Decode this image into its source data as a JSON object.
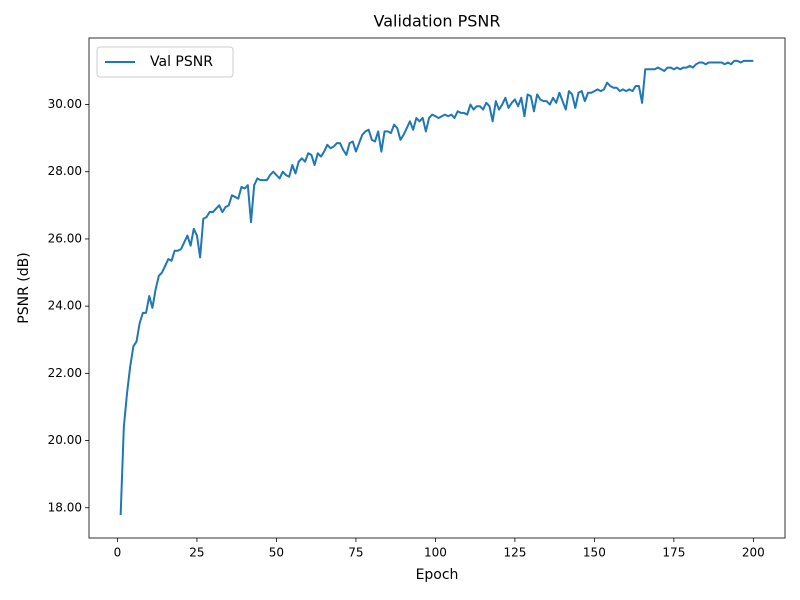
{
  "chart_data": {
    "type": "line",
    "title": "Validation PSNR",
    "x_label": "Epoch",
    "y_label": "PSNR (dB)",
    "x": [
      1,
      2,
      3,
      4,
      5,
      6,
      7,
      8,
      9,
      10,
      11,
      12,
      13,
      14,
      15,
      16,
      17,
      18,
      19,
      20,
      21,
      22,
      23,
      24,
      25,
      26,
      27,
      28,
      29,
      30,
      31,
      32,
      33,
      34,
      35,
      36,
      37,
      38,
      39,
      40,
      41,
      42,
      43,
      44,
      45,
      46,
      47,
      48,
      49,
      50,
      51,
      52,
      53,
      54,
      55,
      56,
      57,
      58,
      59,
      60,
      61,
      62,
      63,
      64,
      65,
      66,
      67,
      68,
      69,
      70,
      71,
      72,
      73,
      74,
      75,
      76,
      77,
      78,
      79,
      80,
      81,
      82,
      83,
      84,
      85,
      86,
      87,
      88,
      89,
      90,
      91,
      92,
      93,
      94,
      95,
      96,
      97,
      98,
      99,
      100,
      101,
      102,
      103,
      104,
      105,
      106,
      107,
      108,
      109,
      110,
      111,
      112,
      113,
      114,
      115,
      116,
      117,
      118,
      119,
      120,
      121,
      122,
      123,
      124,
      125,
      126,
      127,
      128,
      129,
      130,
      131,
      132,
      133,
      134,
      135,
      136,
      137,
      138,
      139,
      140,
      141,
      142,
      143,
      144,
      145,
      146,
      147,
      148,
      149,
      150,
      151,
      152,
      153,
      154,
      155,
      156,
      157,
      158,
      159,
      160,
      161,
      162,
      163,
      164,
      165,
      166,
      167,
      168,
      169,
      170,
      171,
      172,
      173,
      174,
      175,
      176,
      177,
      178,
      179,
      180,
      181,
      182,
      183,
      184,
      185,
      186,
      187,
      188,
      189,
      190,
      191,
      192,
      193,
      194,
      195,
      196,
      197,
      198,
      199,
      200
    ],
    "series": [
      {
        "name": "Val PSNR",
        "color": "#1f77b4",
        "values": [
          17.78,
          20.4,
          21.4,
          22.2,
          22.8,
          22.95,
          23.5,
          23.8,
          23.8,
          24.3,
          23.95,
          24.5,
          24.9,
          25.0,
          25.2,
          25.4,
          25.35,
          25.65,
          25.65,
          25.7,
          25.9,
          26.1,
          25.8,
          26.3,
          26.1,
          25.45,
          26.6,
          26.65,
          26.8,
          26.8,
          26.9,
          27.0,
          26.8,
          26.95,
          27.0,
          27.3,
          27.25,
          27.2,
          27.55,
          27.5,
          27.6,
          26.5,
          27.6,
          27.8,
          27.75,
          27.75,
          27.75,
          27.9,
          28.0,
          27.9,
          27.8,
          28.0,
          27.9,
          27.85,
          28.2,
          27.95,
          28.3,
          28.4,
          28.3,
          28.55,
          28.5,
          28.2,
          28.55,
          28.45,
          28.6,
          28.8,
          28.7,
          28.75,
          28.85,
          28.85,
          28.65,
          28.5,
          28.85,
          28.9,
          28.6,
          28.85,
          29.1,
          29.2,
          29.25,
          28.95,
          28.9,
          29.2,
          28.6,
          29.2,
          29.2,
          29.15,
          29.4,
          29.3,
          28.95,
          29.1,
          29.3,
          29.5,
          29.25,
          29.6,
          29.5,
          29.6,
          29.2,
          29.6,
          29.7,
          29.65,
          29.6,
          29.65,
          29.7,
          29.65,
          29.7,
          29.6,
          29.8,
          29.75,
          29.75,
          29.7,
          30.0,
          29.85,
          29.95,
          29.95,
          29.85,
          30.05,
          29.95,
          29.5,
          30.1,
          29.85,
          30.0,
          30.2,
          29.9,
          30.05,
          30.15,
          29.95,
          30.2,
          29.65,
          30.3,
          30.25,
          29.8,
          30.3,
          30.15,
          30.1,
          30.1,
          30.0,
          30.2,
          30.05,
          30.35,
          30.1,
          29.85,
          30.4,
          30.3,
          29.9,
          30.35,
          30.4,
          30.1,
          30.35,
          30.35,
          30.4,
          30.45,
          30.4,
          30.45,
          30.65,
          30.55,
          30.5,
          30.5,
          30.4,
          30.45,
          30.4,
          30.45,
          30.4,
          30.55,
          30.55,
          30.05,
          31.05,
          31.05,
          31.05,
          31.05,
          31.1,
          31.05,
          31.0,
          31.1,
          31.1,
          31.05,
          31.1,
          31.05,
          31.1,
          31.1,
          31.15,
          31.1,
          31.2,
          31.25,
          31.25,
          31.2,
          31.25,
          31.25,
          31.25,
          31.25,
          31.25,
          31.2,
          31.25,
          31.2,
          31.3,
          31.3,
          31.25,
          31.3,
          31.3,
          31.3,
          31.3
        ]
      }
    ],
    "xlim": [
      -8.95,
      209.95
    ],
    "xticks": [
      0,
      25,
      50,
      75,
      100,
      125,
      150,
      175,
      200
    ],
    "ylim": [
      17.1,
      31.98
    ],
    "yticks": [
      {
        "value": 18,
        "label": "18.00"
      },
      {
        "value": 20,
        "label": "20.00"
      },
      {
        "value": 22,
        "label": "22.00"
      },
      {
        "value": 24,
        "label": "24.00"
      },
      {
        "value": 26,
        "label": "26.00"
      },
      {
        "value": 28,
        "label": "28.00"
      },
      {
        "value": 30,
        "label": "30.00"
      }
    ],
    "grid": false,
    "legend": "upper-left"
  }
}
